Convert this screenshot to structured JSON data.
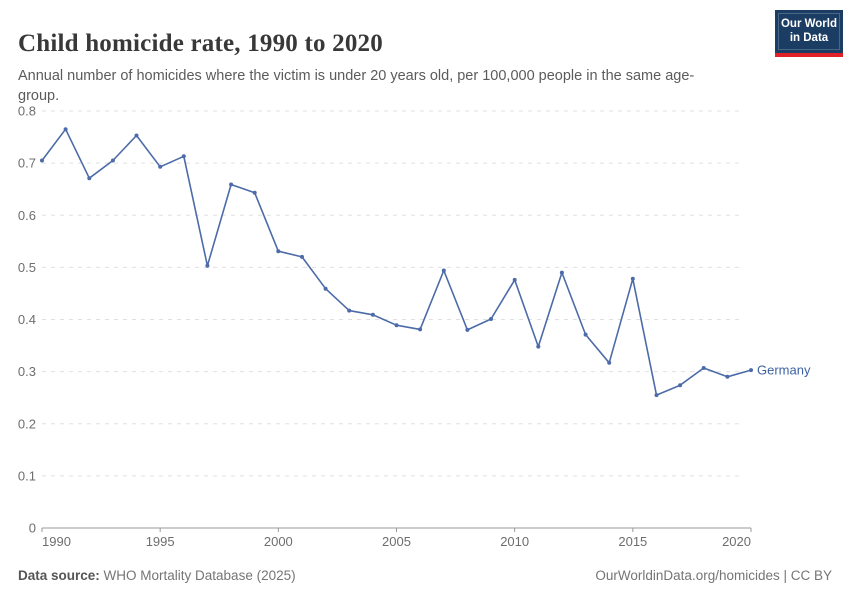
{
  "header": {
    "title": "Child homicide rate, 1990 to 2020",
    "subtitle": "Annual number of homicides where the victim is under 20 years old, per 100,000 people in the same age-group.",
    "logo": {
      "line1": "Our World",
      "line2": "in Data"
    }
  },
  "chart_data": {
    "type": "line",
    "title": "Child homicide rate, 1990 to 2020",
    "xlabel": "",
    "ylabel": "",
    "x": [
      1990,
      1991,
      1992,
      1993,
      1994,
      1995,
      1996,
      1997,
      1998,
      1999,
      2000,
      2001,
      2002,
      2003,
      2004,
      2005,
      2006,
      2007,
      2008,
      2009,
      2010,
      2011,
      2012,
      2013,
      2014,
      2015,
      2016,
      2017,
      2018,
      2019,
      2020
    ],
    "series": [
      {
        "name": "Germany",
        "values": [
          0.705,
          0.765,
          0.671,
          0.705,
          0.753,
          0.693,
          0.713,
          0.503,
          0.659,
          0.643,
          0.531,
          0.52,
          0.459,
          0.417,
          0.409,
          0.389,
          0.381,
          0.494,
          0.38,
          0.401,
          0.476,
          0.348,
          0.49,
          0.371,
          0.317,
          0.478,
          0.255,
          0.274,
          0.307,
          0.29,
          0.303
        ]
      }
    ],
    "xlim": [
      1990,
      2020
    ],
    "ylim": [
      0,
      0.8
    ],
    "xticks": [
      1990,
      1995,
      2000,
      2005,
      2010,
      2015,
      2020
    ],
    "yticks": [
      0,
      0.1,
      0.2,
      0.3,
      0.4,
      0.5,
      0.6,
      0.7,
      0.8
    ],
    "grid": "horizontal-dashed",
    "legend": "end-of-line-label",
    "end_label": "Germany"
  },
  "footer": {
    "source_label": "Data source:",
    "source_value": " WHO Mortality Database (2025)",
    "right_text": "OurWorldinData.org/homicides | CC BY"
  },
  "colors": {
    "line": "#4c6ba8",
    "end_label": "#3d62a5",
    "grid": "#e0e0e0",
    "axis": "#999999",
    "tick_label": "#6e6e6e",
    "logo_bg": "#1b3c63",
    "logo_stripe": "#e02128"
  }
}
